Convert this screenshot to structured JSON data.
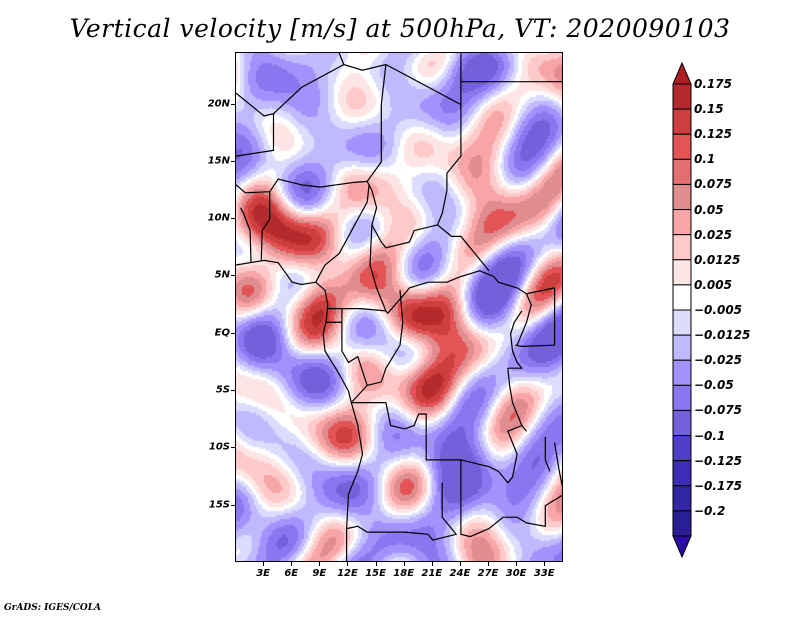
{
  "title": "Vertical velocity [m/s] at 500hPa, VT: 2020090103",
  "credit": "GrADS: IGES/COLA",
  "map": {
    "variable": "Vertical velocity",
    "units": "m/s",
    "level": "500hPa",
    "valid_time": "2020090103",
    "lon_range": [
      0,
      35
    ],
    "lat_range": [
      -20,
      24.5
    ],
    "y_ticks": [
      {
        "label": "20N",
        "lat": 20
      },
      {
        "label": "15N",
        "lat": 15
      },
      {
        "label": "10N",
        "lat": 10
      },
      {
        "label": "5N",
        "lat": 5
      },
      {
        "label": "EQ",
        "lat": 0
      },
      {
        "label": "5S",
        "lat": -5
      },
      {
        "label": "10S",
        "lat": -10
      },
      {
        "label": "15S",
        "lat": -15
      }
    ],
    "x_ticks": [
      {
        "label": "3E",
        "lon": 3
      },
      {
        "label": "6E",
        "lon": 6
      },
      {
        "label": "9E",
        "lon": 9
      },
      {
        "label": "12E",
        "lon": 12
      },
      {
        "label": "15E",
        "lon": 15
      },
      {
        "label": "18E",
        "lon": 18
      },
      {
        "label": "21E",
        "lon": 21
      },
      {
        "label": "24E",
        "lon": 24
      },
      {
        "label": "27E",
        "lon": 27
      },
      {
        "label": "30E",
        "lon": 30
      },
      {
        "label": "33E",
        "lon": 33
      }
    ]
  },
  "colorbar": {
    "labels": [
      "0.175",
      "0.15",
      "0.125",
      "0.1",
      "0.075",
      "0.05",
      "0.025",
      "0.0125",
      "0.005",
      "−0.005",
      "−0.0125",
      "−0.025",
      "−0.05",
      "−0.075",
      "−0.1",
      "−0.125",
      "−0.175",
      "−0.2"
    ],
    "colors": [
      "#b01e24",
      "#b52a2c",
      "#cd3e3f",
      "#e25455",
      "#e46e70",
      "#e08d90",
      "#f7a5a6",
      "#fdc9c9",
      "#fde5e5",
      "#ffffff",
      "#dcdcfe",
      "#c1b9fd",
      "#a392fd",
      "#8877ee",
      "#7461d9",
      "#4e3fc6",
      "#3d2db5",
      "#3326a4",
      "#2a1e95",
      "#2b0ba8"
    ]
  }
}
